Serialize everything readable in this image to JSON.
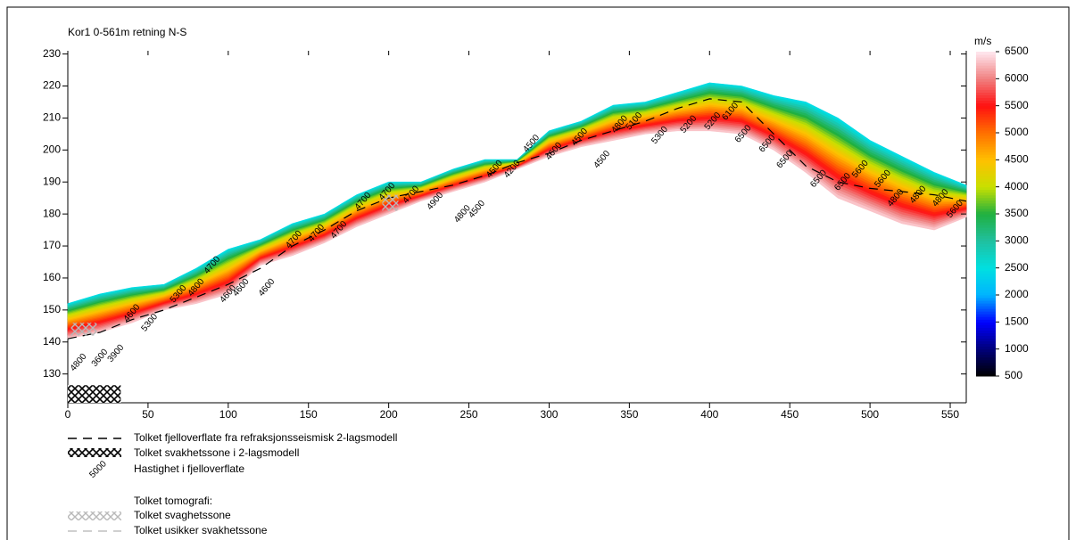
{
  "chart_data": {
    "type": "tomography",
    "title": "Kor1 0-561m retning N-S",
    "x": [
      0,
      20,
      40,
      60,
      80,
      100,
      120,
      140,
      160,
      180,
      200,
      220,
      240,
      260,
      280,
      300,
      320,
      340,
      360,
      380,
      400,
      420,
      440,
      460,
      480,
      500,
      520,
      540,
      560
    ],
    "surface_elevation": [
      152,
      155,
      157,
      158,
      163,
      169,
      172,
      177,
      180,
      186,
      190,
      190,
      194,
      197,
      197,
      206,
      209,
      214,
      215,
      218,
      221,
      220,
      217,
      215,
      210,
      203,
      198,
      193,
      189
    ],
    "model_base": [
      141,
      143,
      146,
      150,
      152,
      155,
      164,
      167,
      171,
      176,
      180,
      184,
      187,
      190,
      194,
      198,
      201,
      203,
      205,
      206,
      206,
      205,
      200,
      193,
      185,
      181,
      177,
      175,
      179
    ],
    "refractor": [
      141,
      143,
      147,
      150,
      154,
      158,
      163,
      170,
      175,
      181,
      185,
      187,
      189,
      192,
      196,
      199,
      203,
      206,
      209,
      213,
      216,
      215,
      205,
      195,
      190,
      188,
      187,
      186,
      184
    ],
    "refractor_color": "#000000",
    "velocity_labels": {
      "x": [
        6.7,
        20,
        30,
        40,
        51,
        69,
        80,
        90,
        100,
        108,
        124,
        141,
        155,
        169,
        184,
        199,
        214,
        229,
        246,
        255,
        266,
        277,
        289,
        303,
        319,
        333,
        344,
        353,
        369,
        387,
        402,
        413,
        421,
        436,
        447,
        468,
        483,
        494,
        508,
        516,
        530,
        544,
        553
      ],
      "y": [
        133.6,
        135,
        136.4,
        149,
        146,
        155,
        157,
        164,
        155,
        157,
        157,
        172,
        174,
        175,
        184,
        187,
        186,
        184,
        180,
        181.5,
        194,
        194,
        202,
        199.6,
        204,
        197,
        208,
        209,
        204.6,
        208,
        209,
        212,
        205,
        202,
        197,
        191,
        190,
        194,
        191,
        185,
        186,
        185,
        181.5
      ],
      "values": [
        4800,
        3600,
        3900,
        4600,
        5300,
        5300,
        4800,
        4700,
        4600,
        4600,
        4600,
        4700,
        4700,
        4700,
        4700,
        4700,
        4700,
        4900,
        4800,
        4500,
        4500,
        4200,
        4500,
        4600,
        4500,
        4500,
        4800,
        5100,
        5300,
        5200,
        5200,
        6100,
        6500,
        6500,
        6500,
        6500,
        6500,
        5600,
        5600,
        4800,
        4800,
        4800,
        5600
      ]
    },
    "weakness_zones_2layer": [
      {
        "x": [
          0,
          33
        ],
        "y": [
          121,
          126.5
        ]
      }
    ],
    "weakness_zones_tomography": [
      {
        "x": [
          2,
          18
        ],
        "y": [
          142,
          146
        ]
      },
      {
        "x": [
          196,
          206
        ],
        "y": [
          181,
          186
        ]
      }
    ],
    "xlim": [
      0,
      560
    ],
    "xticks": [
      0,
      50,
      100,
      150,
      200,
      250,
      300,
      350,
      400,
      450,
      500,
      550
    ],
    "ylim": [
      121,
      231
    ],
    "yticks": [
      130,
      140,
      150,
      160,
      170,
      180,
      190,
      200,
      210,
      220,
      230
    ],
    "colorbar": {
      "label": "m/s",
      "ticks": [
        500,
        1000,
        1500,
        2000,
        2500,
        3000,
        3500,
        4000,
        4500,
        5000,
        5500,
        6000,
        6500
      ],
      "colors": [
        "#000000",
        "#00007a",
        "#0000ff",
        "#00b4ff",
        "#00e0e0",
        "#20c0a0",
        "#20b040",
        "#c8e000",
        "#ffc000",
        "#ff7000",
        "#ff1010",
        "#f08080",
        "#ffe8f0"
      ]
    },
    "legend": {
      "items": [
        "Tolket fjelloverflate fra refraksjonsseismisk 2-lagsmodell",
        "Tolket svakhetssone i 2-lagsmodell",
        "Hastighet i fjelloverflate"
      ],
      "sample_label": "5000",
      "tomography_heading": "Tolket tomografi:",
      "tomography_items": [
        "Tolket svaghetssone",
        "Tolket usikker svakhetssone"
      ]
    }
  }
}
